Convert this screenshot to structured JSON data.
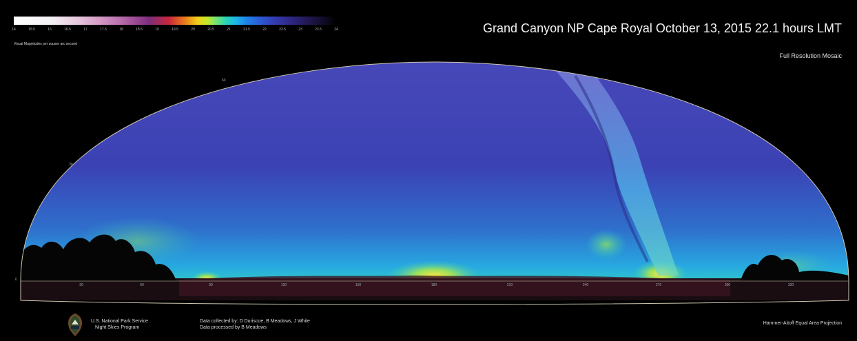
{
  "colorbar": {
    "ticks": [
      "14",
      "15.5",
      "16",
      "16.5",
      "17",
      "17.5",
      "18",
      "18.5",
      "19",
      "19.5",
      "20",
      "20.5",
      "21",
      "21.5",
      "22",
      "22.5",
      "23",
      "23.5",
      "24"
    ],
    "label": "Visual Magnitudes per square arc second"
  },
  "title": "Grand Canyon NP    Cape Royal    October 13, 2015    22.1 hours LMT",
  "subtitle": "Full Resolution Mosaic",
  "panorama": {
    "azimuth_labels": [
      "30",
      "60",
      "90",
      "120",
      "150",
      "180",
      "210",
      "240",
      "270",
      "300",
      "330"
    ],
    "altitude_labels": [
      "60",
      "30",
      "0"
    ]
  },
  "footer": {
    "org_line1": "U.S. National Park Service",
    "org_line2": "Night Skies Program",
    "credits_line1": "Data collected by: D Duriscoe, B Meadows, J White",
    "credits_line2": "Data processed by B Meadows",
    "projection": "Hammer-Aitoff Equal Area Projection"
  },
  "colors": {
    "background": "#000000",
    "sky_main": "#3a3fb0",
    "sky_horizon": "#2a8fd8",
    "glow": "#e8e830"
  }
}
